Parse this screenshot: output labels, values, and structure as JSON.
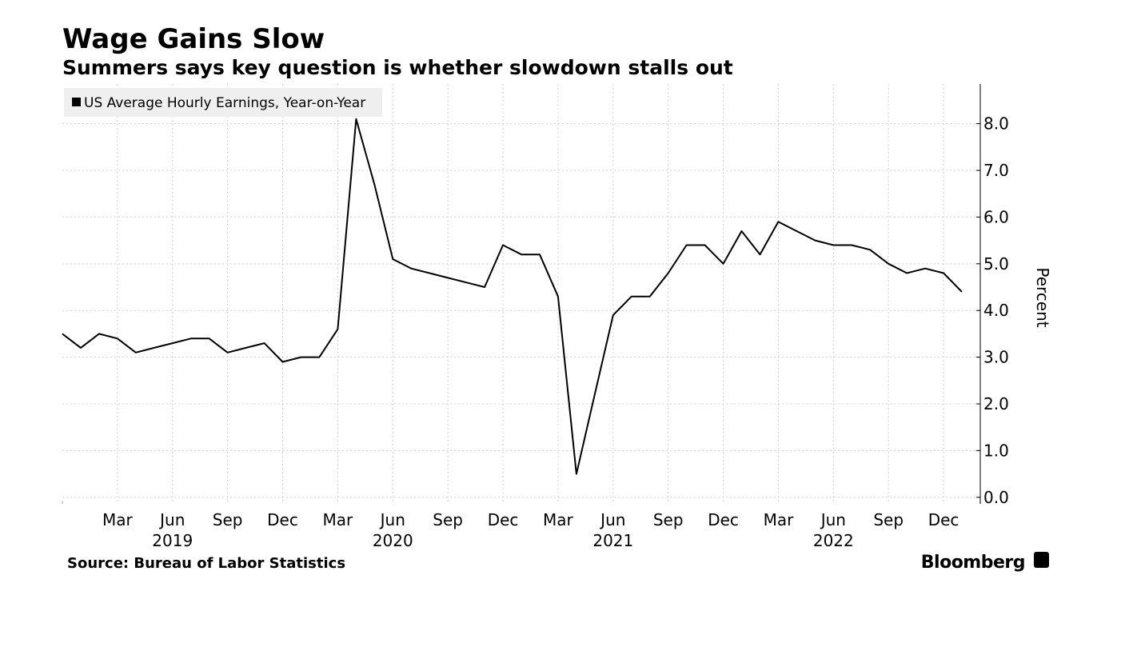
{
  "chart_data": {
    "type": "line",
    "title": "Wage Gains Slow",
    "subtitle": "Summers says key question is whether slowdown stalls out",
    "source": "Source: Bureau of Labor Statistics",
    "brand": "Bloomberg",
    "ylabel": "Percent",
    "x": [
      "2018-12",
      "2019-01",
      "2019-02",
      "2019-03",
      "2019-04",
      "2019-05",
      "2019-06",
      "2019-07",
      "2019-08",
      "2019-09",
      "2019-10",
      "2019-11",
      "2019-12",
      "2020-01",
      "2020-02",
      "2020-03",
      "2020-04",
      "2020-05",
      "2020-06",
      "2020-07",
      "2020-08",
      "2020-09",
      "2020-10",
      "2020-11",
      "2020-12",
      "2021-01",
      "2021-02",
      "2021-03",
      "2021-04",
      "2021-05",
      "2021-06",
      "2021-07",
      "2021-08",
      "2021-09",
      "2021-10",
      "2021-11",
      "2021-12",
      "2022-01",
      "2022-02",
      "2022-03",
      "2022-04",
      "2022-05",
      "2022-06",
      "2022-07",
      "2022-08",
      "2022-09",
      "2022-10",
      "2022-11",
      "2022-12",
      "2023-01"
    ],
    "series": [
      {
        "name": "US Average Hourly Earnings, Year-on-Year",
        "color": "#000000",
        "values": [
          3.5,
          3.2,
          3.5,
          3.4,
          3.1,
          3.2,
          3.3,
          3.4,
          3.4,
          3.1,
          3.2,
          3.3,
          2.9,
          3.0,
          3.0,
          3.6,
          8.1,
          6.7,
          5.1,
          4.9,
          4.8,
          4.7,
          4.6,
          4.5,
          5.4,
          5.2,
          5.2,
          4.3,
          0.5,
          2.2,
          3.9,
          4.3,
          4.3,
          4.8,
          5.4,
          5.4,
          5.0,
          5.7,
          5.2,
          5.9,
          5.7,
          5.5,
          5.4,
          5.4,
          5.3,
          5.0,
          4.8,
          4.9,
          4.8,
          4.4
        ]
      }
    ],
    "ylim": [
      -0.14,
      8.85
    ],
    "yticks": [
      {
        "value": 0,
        "label": "0.0"
      },
      {
        "value": 1,
        "label": "1.0"
      },
      {
        "value": 2,
        "label": "2.0"
      },
      {
        "value": 3,
        "label": "3.0"
      },
      {
        "value": 4,
        "label": "4.0"
      },
      {
        "value": 5,
        "label": "5.0"
      },
      {
        "value": 6,
        "label": "6.0"
      },
      {
        "value": 7,
        "label": "7.0"
      },
      {
        "value": 8,
        "label": "8.0"
      }
    ],
    "xticks": [
      {
        "value": "2019-03",
        "label": "Mar"
      },
      {
        "value": "2019-06",
        "label": "Jun"
      },
      {
        "value": "2019-09",
        "label": "Sep"
      },
      {
        "value": "2019-12",
        "label": "Dec"
      },
      {
        "value": "2020-03",
        "label": "Mar"
      },
      {
        "value": "2020-06",
        "label": "Jun"
      },
      {
        "value": "2020-09",
        "label": "Sep"
      },
      {
        "value": "2020-12",
        "label": "Dec"
      },
      {
        "value": "2021-03",
        "label": "Mar"
      },
      {
        "value": "2021-06",
        "label": "Jun"
      },
      {
        "value": "2021-09",
        "label": "Sep"
      },
      {
        "value": "2021-12",
        "label": "Dec"
      },
      {
        "value": "2022-03",
        "label": "Mar"
      },
      {
        "value": "2022-06",
        "label": "Jun"
      },
      {
        "value": "2022-09",
        "label": "Sep"
      },
      {
        "value": "2022-12",
        "label": "Dec"
      }
    ],
    "year_labels": [
      {
        "value": "2019-06",
        "label": "2019"
      },
      {
        "value": "2020-06",
        "label": "2020"
      },
      {
        "value": "2021-06",
        "label": "2021"
      },
      {
        "value": "2022-06",
        "label": "2022"
      }
    ],
    "grid": true,
    "legend": "upper left"
  }
}
